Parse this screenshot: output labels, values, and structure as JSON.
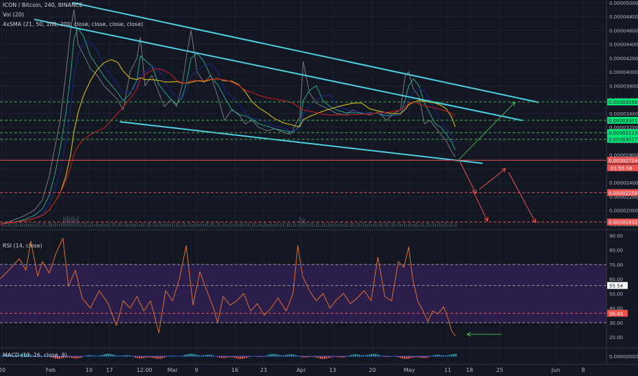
{
  "header": {
    "symbol_line": "ICON / Bitcoin, 240, BINANCE",
    "volume_line": "Vol (20)",
    "sma_line": "4xSMA (21, 50, 100, 200, close, close, close, close)"
  },
  "rsi_pane": {
    "legend": "RSI (14, close)"
  },
  "macd_pane": {
    "legend": "MACD (12, 26, close, 9)"
  },
  "colors": {
    "background": "#131722",
    "price_line": "#787b86",
    "channel": "#4dd0e1",
    "sma_21": "#26a69a",
    "sma_50": "#1a237e",
    "sma_100": "#c9b11c",
    "sma_200": "#b71c1c",
    "rsi_line": "#e0722e",
    "rsi_band": "#2b1e4a",
    "support_level": "#4caf50",
    "target_level": "#ef5350",
    "current_label": "#ef5350"
  },
  "chart_data": [
    {
      "type": "line",
      "name": "price",
      "x_ticks": [
        "20",
        "Feb",
        "10",
        "17",
        "12:00",
        "Mar",
        "9",
        "16",
        "23",
        "Apr",
        "13",
        "20",
        "May",
        "11",
        "18",
        "25",
        "Jun",
        "8"
      ],
      "y_ticks": [
        "0.00005000",
        "0.00004800",
        "0.00004600",
        "0.00004400",
        "0.00004200",
        "0.00004000",
        "0.00003800",
        "0.00003600",
        "0.00003400",
        "0.00003200",
        "0.00003000",
        "0.00002800",
        "0.00002600",
        "0.00002400",
        "0.00002200",
        "0.00002000",
        "0.00001800"
      ],
      "ylim": [
        1.76e-05,
        5e-05
      ],
      "series_path": [
        [
          0,
          1.8e-05
        ],
        [
          8,
          1.82e-05
        ],
        [
          20,
          1.86e-05
        ],
        [
          35,
          1.92e-05
        ],
        [
          50,
          2e-05
        ],
        [
          62,
          2.15e-05
        ],
        [
          72,
          2.5e-05
        ],
        [
          80,
          2.9e-05
        ],
        [
          88,
          3.3e-05
        ],
        [
          96,
          3.95e-05
        ],
        [
          103,
          4.6e-05
        ],
        [
          108,
          4.9e-05
        ],
        [
          114,
          4.4e-05
        ],
        [
          122,
          4.25e-05
        ],
        [
          132,
          4.05e-05
        ],
        [
          142,
          3.95e-05
        ],
        [
          152,
          3.8e-05
        ],
        [
          162,
          3.7e-05
        ],
        [
          172,
          3.6e-05
        ],
        [
          180,
          3.45e-05
        ],
        [
          190,
          4e-05
        ],
        [
          200,
          4.2e-05
        ],
        [
          205,
          4.5e-05
        ],
        [
          212,
          3.8e-05
        ],
        [
          222,
          3.95e-05
        ],
        [
          232,
          3.7e-05
        ],
        [
          240,
          3.5e-05
        ],
        [
          250,
          3.6e-05
        ],
        [
          258,
          3.5e-05
        ],
        [
          266,
          3.8e-05
        ],
        [
          272,
          4.2e-05
        ],
        [
          279,
          4.6e-05
        ],
        [
          288,
          4e-05
        ],
        [
          298,
          3.85e-05
        ],
        [
          308,
          3.95e-05
        ],
        [
          318,
          3.65e-05
        ],
        [
          328,
          3.3e-05
        ],
        [
          338,
          3.45e-05
        ],
        [
          348,
          3.4e-05
        ],
        [
          358,
          3.25e-05
        ],
        [
          368,
          3.3e-05
        ],
        [
          378,
          3.2e-05
        ],
        [
          390,
          3.15e-05
        ],
        [
          402,
          3.18e-05
        ],
        [
          415,
          3.12e-05
        ],
        [
          425,
          3.1e-05
        ],
        [
          432,
          3.25e-05
        ],
        [
          438,
          3.35e-05
        ],
        [
          443,
          4.15e-05
        ],
        [
          452,
          3.7e-05
        ],
        [
          462,
          3.55e-05
        ],
        [
          472,
          3.5e-05
        ],
        [
          482,
          3.45e-05
        ],
        [
          492,
          3.4e-05
        ],
        [
          505,
          3.38e-05
        ],
        [
          515,
          3.45e-05
        ],
        [
          528,
          3.4e-05
        ],
        [
          540,
          3.38e-05
        ],
        [
          552,
          3.42e-05
        ],
        [
          565,
          3.3e-05
        ],
        [
          575,
          3.4e-05
        ],
        [
          585,
          3.45e-05
        ],
        [
          592,
          3.95e-05
        ],
        [
          597,
          4e-05
        ],
        [
          604,
          3.75e-05
        ],
        [
          612,
          3.65e-05
        ],
        [
          620,
          3.25e-05
        ],
        [
          628,
          3.3e-05
        ],
        [
          636,
          3.2e-05
        ],
        [
          644,
          3.1e-05
        ],
        [
          652,
          3e-05
        ],
        [
          660,
          2.85e-05
        ],
        [
          665,
          2.77e-05
        ]
      ],
      "channel_lines": [
        {
          "from": [
            106,
            5e-05
          ],
          "to": [
            787,
            3.56e-05
          ]
        },
        {
          "from": [
            50,
            4.76e-05
          ],
          "to": [
            763,
            3.3e-05
          ]
        },
        {
          "from": [
            175,
            3.28e-05
          ],
          "to": [
            705,
            2.68e-05
          ]
        }
      ],
      "levels": [
        {
          "value": 3.566e-05,
          "label": "0.00003566",
          "kind": "support"
        },
        {
          "value": 3.301e-05,
          "label": "0.00003301",
          "kind": "support"
        },
        {
          "value": 3.123e-05,
          "label": "0.00003123",
          "kind": "support"
        },
        {
          "value": 3.027e-05,
          "label": "0.00003027",
          "kind": "support"
        },
        {
          "value": 2.724e-05,
          "label": "0.00002724",
          "kind": "current",
          "countdown": "01:55:58"
        },
        {
          "value": 2.256e-05,
          "label": "0.00002256",
          "kind": "target"
        },
        {
          "value": 1.832e-05,
          "label": "0.00001832",
          "kind": "target"
        }
      ],
      "arrows": [
        {
          "color": "green",
          "from": [
            670,
            2.73e-05
          ],
          "to": [
            752,
            3.56e-05
          ]
        },
        {
          "color": "red",
          "from": [
            672,
            2.7e-05
          ],
          "to": [
            695,
            2.25e-05
          ]
        },
        {
          "color": "red",
          "from": [
            700,
            2.3e-05
          ],
          "to": [
            738,
            2.6e-05
          ]
        },
        {
          "color": "red",
          "from": [
            743,
            2.55e-05
          ],
          "to": [
            782,
            1.83e-05
          ]
        },
        {
          "color": "red",
          "from": [
            690,
            2.3e-05
          ],
          "to": [
            712,
            1.85e-05
          ]
        }
      ]
    },
    {
      "type": "line",
      "name": "RSI",
      "y_ticks": [
        "90.00",
        "80.00",
        "70.00",
        "60.00",
        "50.00",
        "40.00",
        "30.00",
        "20.00"
      ],
      "ylim": [
        14,
        92
      ],
      "levels": [
        {
          "value": 70,
          "kind": "band-top"
        },
        {
          "value": 55.54,
          "label": "55.54",
          "kind": "current"
        },
        {
          "value": 36.43,
          "label": "36.43",
          "kind": "current-red"
        },
        {
          "value": 30,
          "kind": "band-bottom"
        }
      ],
      "series_path": [
        [
          0,
          60
        ],
        [
          15,
          67
        ],
        [
          28,
          74
        ],
        [
          38,
          66
        ],
        [
          45,
          86
        ],
        [
          55,
          62
        ],
        [
          62,
          72
        ],
        [
          72,
          64
        ],
        [
          82,
          78
        ],
        [
          92,
          88
        ],
        [
          100,
          55
        ],
        [
          110,
          66
        ],
        [
          120,
          47
        ],
        [
          132,
          40
        ],
        [
          145,
          52
        ],
        [
          158,
          43
        ],
        [
          170,
          28
        ],
        [
          180,
          45
        ],
        [
          190,
          40
        ],
        [
          200,
          48
        ],
        [
          210,
          38
        ],
        [
          220,
          45
        ],
        [
          232,
          23
        ],
        [
          242,
          52
        ],
        [
          252,
          45
        ],
        [
          262,
          60
        ],
        [
          272,
          83
        ],
        [
          282,
          42
        ],
        [
          292,
          65
        ],
        [
          302,
          52
        ],
        [
          312,
          40
        ],
        [
          318,
          30
        ],
        [
          326,
          48
        ],
        [
          336,
          42
        ],
        [
          346,
          45
        ],
        [
          356,
          50
        ],
        [
          366,
          38
        ],
        [
          376,
          43
        ],
        [
          386,
          35
        ],
        [
          396,
          40
        ],
        [
          406,
          47
        ],
        [
          418,
          38
        ],
        [
          428,
          50
        ],
        [
          435,
          83
        ],
        [
          442,
          62
        ],
        [
          452,
          52
        ],
        [
          462,
          45
        ],
        [
          472,
          50
        ],
        [
          482,
          40
        ],
        [
          492,
          46
        ],
        [
          502,
          50
        ],
        [
          512,
          43
        ],
        [
          522,
          47
        ],
        [
          532,
          52
        ],
        [
          542,
          45
        ],
        [
          552,
          75
        ],
        [
          562,
          48
        ],
        [
          572,
          45
        ],
        [
          582,
          72
        ],
        [
          590,
          68
        ],
        [
          597,
          82
        ],
        [
          603,
          60
        ],
        [
          610,
          45
        ],
        [
          618,
          38
        ],
        [
          625,
          31
        ],
        [
          632,
          38
        ],
        [
          640,
          36
        ],
        [
          648,
          41
        ],
        [
          655,
          32
        ],
        [
          660,
          24
        ],
        [
          665,
          21
        ]
      ],
      "arrows": [
        {
          "color": "green",
          "from": [
            733,
            22
          ],
          "to": [
            683,
            22
          ]
        }
      ]
    },
    {
      "type": "line",
      "name": "MACD",
      "y_ticks": [
        "0.00000000"
      ]
    }
  ]
}
